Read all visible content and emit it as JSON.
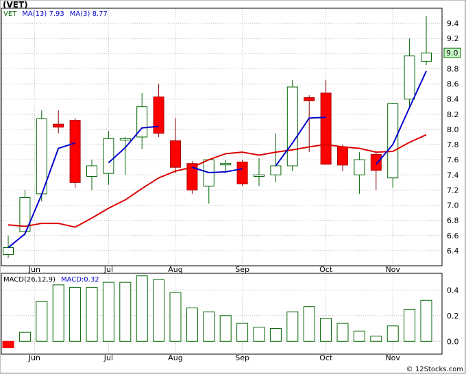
{
  "header": {
    "ticker": "(VET)",
    "legend": {
      "symbol": "VET",
      "ma13_label": "MA(13)",
      "ma13_value": "7.93",
      "ma3_label": "MA(3)",
      "ma3_value": "8.77"
    },
    "macd_legend": {
      "label": "MACD(26,12,9)",
      "value_label": "MACD:0.32"
    },
    "watermark": "© 12Stocks.com",
    "last_price_tag": "9.0"
  },
  "colors": {
    "up_candle": "#006400",
    "down_candle": "#ff0000",
    "ma3": "#0000cc",
    "ma13": "#dd0000",
    "grid": "#c0c0c0",
    "price_tag_bg": "#ccffcc",
    "symbol_color": "#006400",
    "legend_color": "#0000cc"
  },
  "chart_data": [
    {
      "type": "candlestick",
      "y_ticks": [
        6.4,
        6.6,
        6.8,
        7.0,
        7.2,
        7.4,
        7.6,
        7.8,
        8.0,
        8.2,
        8.4,
        8.6,
        8.8,
        9.0,
        9.2,
        9.4
      ],
      "ylim": [
        6.2,
        9.6
      ],
      "x_ticks": [
        {
          "label": "Jun",
          "index": 1
        },
        {
          "label": "Jul",
          "index": 6
        },
        {
          "label": "Aug",
          "index": 10
        },
        {
          "label": "Sep",
          "index": 14
        },
        {
          "label": "Oct",
          "index": 19
        },
        {
          "label": "Nov",
          "index": 23
        }
      ],
      "candles": [
        {
          "o": 6.35,
          "h": 6.6,
          "l": 6.3,
          "c": 6.44
        },
        {
          "o": 6.65,
          "h": 7.2,
          "l": 6.6,
          "c": 7.1
        },
        {
          "o": 7.15,
          "h": 8.25,
          "l": 7.05,
          "c": 8.14
        },
        {
          "o": 8.07,
          "h": 8.25,
          "l": 7.95,
          "c": 8.03
        },
        {
          "o": 8.12,
          "h": 8.15,
          "l": 7.23,
          "c": 7.3
        },
        {
          "o": 7.38,
          "h": 7.6,
          "l": 7.2,
          "c": 7.52
        },
        {
          "o": 7.42,
          "h": 7.98,
          "l": 7.27,
          "c": 7.88
        },
        {
          "o": 7.86,
          "h": 7.9,
          "l": 7.4,
          "c": 7.88
        },
        {
          "o": 7.9,
          "h": 8.48,
          "l": 7.74,
          "c": 8.3
        },
        {
          "o": 8.43,
          "h": 8.6,
          "l": 7.9,
          "c": 7.95
        },
        {
          "o": 7.85,
          "h": 8.15,
          "l": 7.42,
          "c": 7.5
        },
        {
          "o": 7.55,
          "h": 7.58,
          "l": 7.15,
          "c": 7.2
        },
        {
          "o": 7.25,
          "h": 7.6,
          "l": 7.02,
          "c": 7.6
        },
        {
          "o": 7.55,
          "h": 7.6,
          "l": 7.45,
          "c": 7.55
        },
        {
          "o": 7.57,
          "h": 7.6,
          "l": 7.25,
          "c": 7.28
        },
        {
          "o": 7.38,
          "h": 7.62,
          "l": 7.25,
          "c": 7.4
        },
        {
          "o": 7.4,
          "h": 7.95,
          "l": 7.3,
          "c": 7.52
        },
        {
          "o": 7.52,
          "h": 8.65,
          "l": 7.45,
          "c": 8.56
        },
        {
          "o": 8.42,
          "h": 8.45,
          "l": 7.7,
          "c": 8.38
        },
        {
          "o": 8.48,
          "h": 8.65,
          "l": 7.55,
          "c": 7.54
        },
        {
          "o": 7.77,
          "h": 7.8,
          "l": 7.45,
          "c": 7.53
        },
        {
          "o": 7.4,
          "h": 7.7,
          "l": 7.15,
          "c": 7.6
        },
        {
          "o": 7.67,
          "h": 7.7,
          "l": 7.2,
          "c": 7.46
        },
        {
          "o": 7.36,
          "h": 8.35,
          "l": 7.23,
          "c": 8.34
        },
        {
          "o": 8.4,
          "h": 9.2,
          "l": 8.3,
          "c": 8.97
        },
        {
          "o": 8.9,
          "h": 9.5,
          "l": 8.85,
          "c": 9.01
        }
      ],
      "ma3": [
        6.44,
        6.62,
        7.14,
        7.75,
        7.82,
        null,
        7.56,
        7.76,
        8.02,
        8.04,
        null,
        7.5,
        7.43,
        7.44,
        7.48,
        null,
        7.52,
        7.82,
        8.15,
        8.16,
        null,
        null,
        7.54,
        7.8,
        8.29,
        8.77
      ],
      "ma13": [
        6.74,
        6.72,
        6.76,
        6.76,
        6.71,
        6.83,
        6.96,
        7.07,
        7.22,
        7.36,
        7.45,
        7.5,
        7.6,
        7.68,
        7.7,
        7.66,
        7.7,
        7.73,
        7.77,
        7.8,
        7.77,
        7.75,
        7.7,
        7.71,
        7.83,
        7.93
      ]
    },
    {
      "type": "bar",
      "title": "MACD(26,12,9)",
      "y_ticks": [
        0.0,
        0.2,
        0.4
      ],
      "ylim": [
        -0.1,
        0.53
      ],
      "values": [
        -0.05,
        0.07,
        0.31,
        0.44,
        0.42,
        0.42,
        0.46,
        0.46,
        0.51,
        0.48,
        0.38,
        0.26,
        0.23,
        0.2,
        0.14,
        0.11,
        0.1,
        0.23,
        0.27,
        0.18,
        0.14,
        0.08,
        0.04,
        0.12,
        0.25,
        0.32
      ]
    }
  ]
}
